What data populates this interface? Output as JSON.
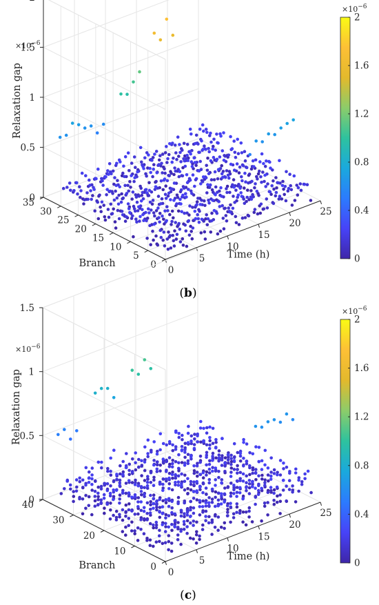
{
  "colormap": [
    "#3e26a8",
    "#4743f8",
    "#2c7bfe",
    "#1aa9dd",
    "#2ec29e",
    "#8ccc6a",
    "#e3b92c",
    "#fdc036",
    "#f9fb15"
  ],
  "chart_data": [
    {
      "type": "scatter",
      "panel_label": "b",
      "xlabel": "Time (h)",
      "ylabel": "Branch",
      "zlabel": "Relaxation gap",
      "z_multiplier_label": "×10",
      "z_multiplier_exp": "−6",
      "x_ticks": [
        "0",
        "5",
        "10",
        "15",
        "20",
        "25"
      ],
      "y_ticks": [
        "0",
        "5",
        "10",
        "15",
        "20",
        "25",
        "30",
        "35"
      ],
      "z_ticks": [
        "0",
        "0.5",
        "1",
        "1.5",
        "2"
      ],
      "xlim": [
        0,
        25
      ],
      "ylim": [
        0,
        35
      ],
      "zlim": [
        0,
        2
      ],
      "grid": true,
      "colorbar": {
        "ticks": [
          "0",
          "0.4",
          "0.8",
          "1.2",
          "1.6",
          "2"
        ],
        "limits": [
          0,
          2
        ],
        "multiplier_label": "×10",
        "multiplier_exp": "−6",
        "placement": "right"
      },
      "branches": 32,
      "hours": 24,
      "point_count": 768,
      "typical_gap_range": [
        0.0,
        0.25
      ],
      "highlights": [
        {
          "branch": 32,
          "hour_range": [
            1,
            8
          ],
          "gap_range": [
            0.5,
            0.75
          ]
        },
        {
          "branch": 27,
          "hour_range": [
            8,
            11
          ],
          "gap_range": [
            0.9,
            1.35
          ]
        },
        {
          "branch": 21,
          "hour_range": [
            10,
            13
          ],
          "gap_range": [
            1.55,
            1.75
          ]
        },
        {
          "branch": 6,
          "hour_range": [
            17,
            24
          ],
          "gap_range": [
            0.5,
            0.8
          ]
        }
      ]
    },
    {
      "type": "scatter",
      "panel_label": "c",
      "xlabel": "Time (h)",
      "ylabel": "Branch",
      "zlabel": "Relaxation gap",
      "z_multiplier_label": "×10",
      "z_multiplier_exp": "−6",
      "x_ticks": [
        "0",
        "5",
        "10",
        "15",
        "20",
        "25"
      ],
      "y_ticks": [
        "0",
        "10",
        "20",
        "30",
        "40"
      ],
      "z_ticks": [
        "0",
        "0.5",
        "1",
        "1.5"
      ],
      "xlim": [
        0,
        25
      ],
      "ylim": [
        0,
        40
      ],
      "zlim": [
        0,
        1.5
      ],
      "grid": true,
      "colorbar": {
        "ticks": [
          "0",
          "0.4",
          "0.8",
          "1.2",
          "1.6",
          "2"
        ],
        "limits": [
          0,
          2
        ],
        "multiplier_label": "×10",
        "multiplier_exp": "−6",
        "placement": "right"
      },
      "branches": 37,
      "hours": 24,
      "point_count": 888,
      "typical_gap_range": [
        0.0,
        0.25
      ],
      "highlights": [
        {
          "branch": 37,
          "hour_range": [
            1,
            4
          ],
          "gap_range": [
            0.45,
            0.55
          ]
        },
        {
          "branch": 33,
          "hour_range": [
            5,
            8
          ],
          "gap_range": [
            0.7,
            0.85
          ]
        },
        {
          "branch": 27,
          "hour_range": [
            8,
            11
          ],
          "gap_range": [
            0.95,
            1.1
          ]
        },
        {
          "branch": 7,
          "hour_range": [
            18,
            24
          ],
          "gap_range": [
            0.5,
            0.7
          ]
        }
      ]
    }
  ]
}
